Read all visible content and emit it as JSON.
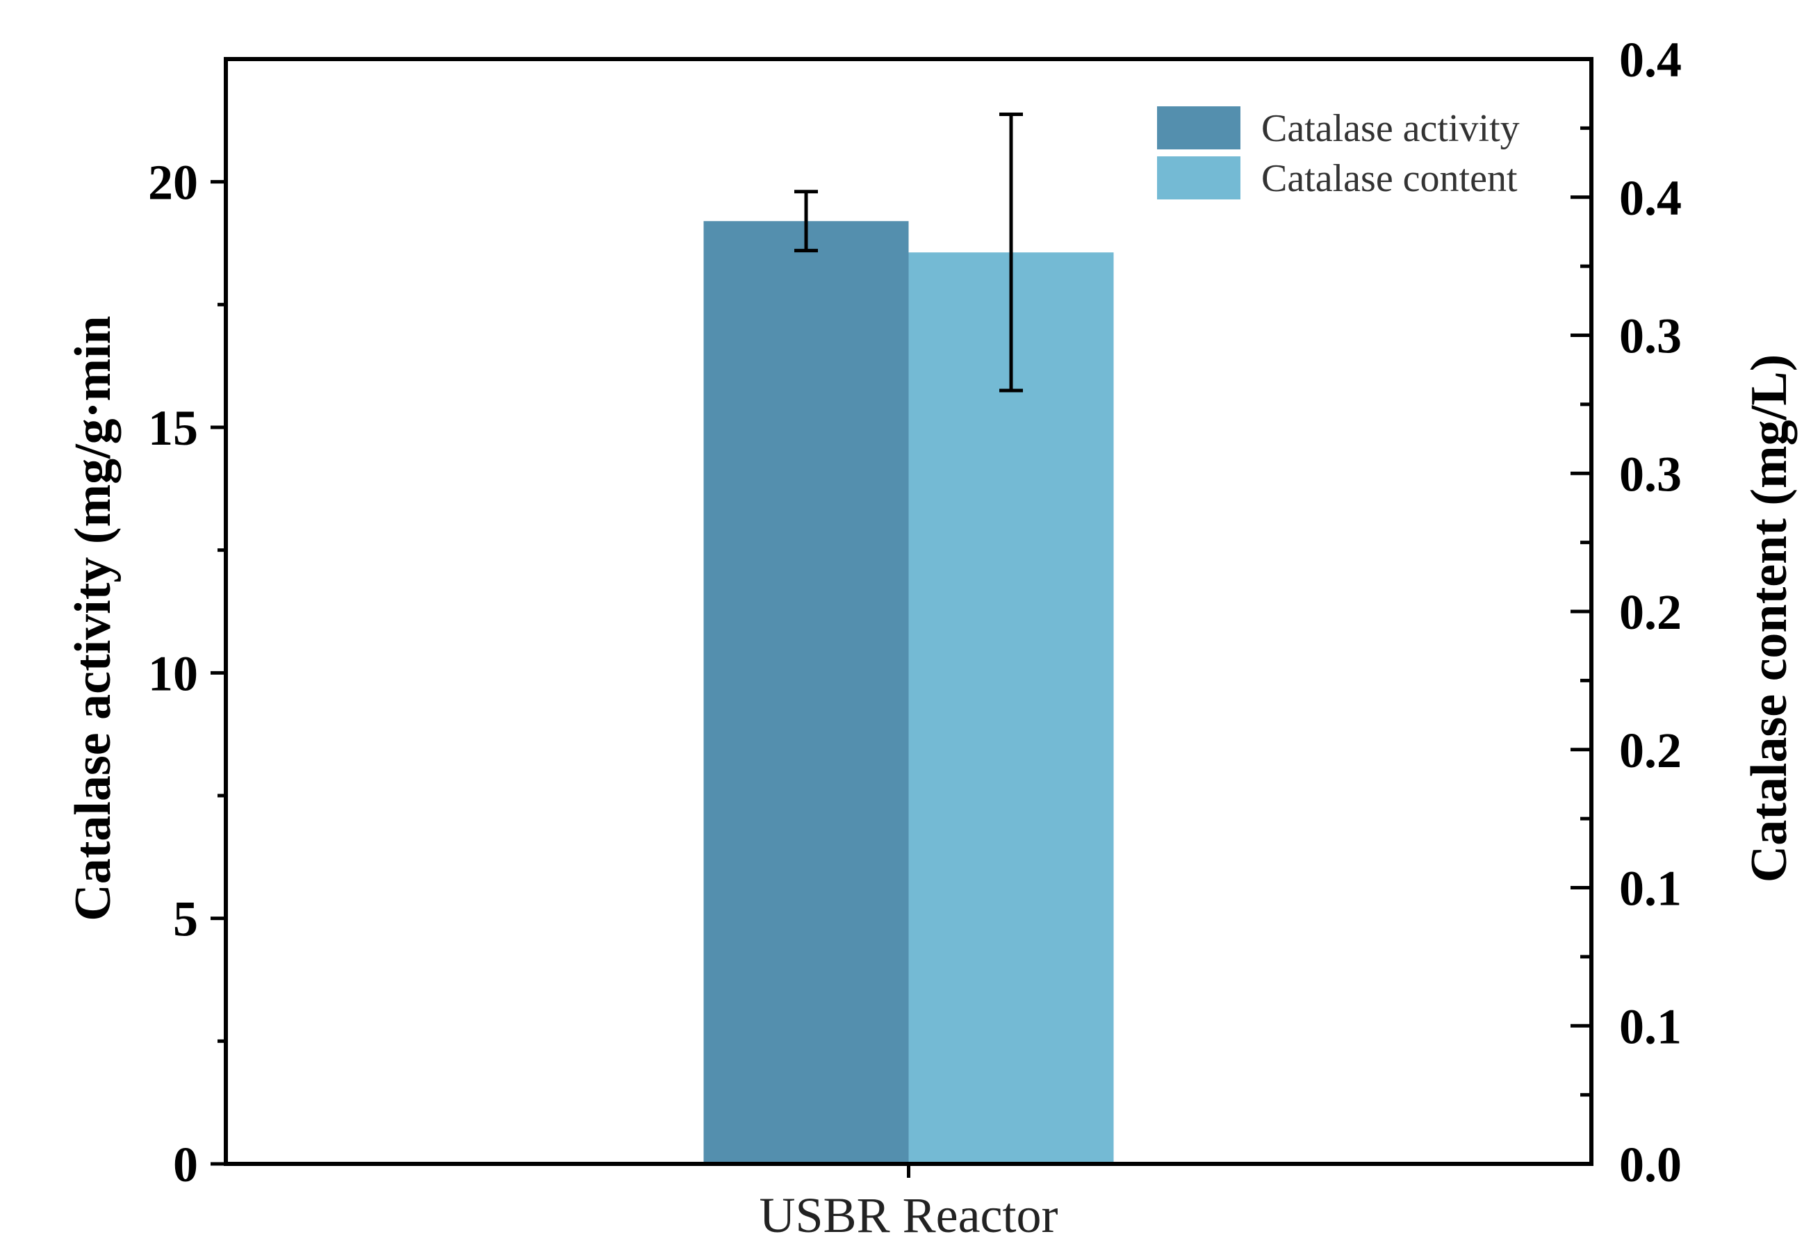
{
  "chart_data": {
    "type": "bar",
    "categories": [
      "USBR Reactor"
    ],
    "series": [
      {
        "name": "Catalase activity",
        "axis": "left",
        "values": [
          19.2
        ],
        "error": [
          0.6
        ],
        "color": "#548FAE"
      },
      {
        "name": "Catalase content",
        "axis": "right",
        "values": [
          0.33
        ],
        "error": [
          0.05
        ],
        "color": "#74BAD4"
      }
    ],
    "y_left": {
      "label": "Catalase activity (mg/g·min",
      "range": [
        0,
        22.5
      ],
      "ticks": [
        0,
        5,
        10,
        15,
        20
      ],
      "tick_labels": [
        "0",
        "5",
        "10",
        "15",
        "20"
      ],
      "minor_ticks": [
        2.5,
        7.5,
        12.5,
        17.5
      ]
    },
    "y_right": {
      "label": "Catalase content (mg/L)",
      "range": [
        0,
        0.4
      ],
      "ticks": [
        0,
        0.05,
        0.1,
        0.15,
        0.2,
        0.25,
        0.3,
        0.35,
        0.4
      ],
      "tick_labels": [
        "0.0",
        "0.1",
        "0.1",
        "0.2",
        "0.2",
        "0.3",
        "0.3",
        "0.4",
        "0.4"
      ],
      "minor_ticks": [
        0.025,
        0.075,
        0.125,
        0.175,
        0.225,
        0.275,
        0.325,
        0.375
      ]
    },
    "legend": {
      "position": "top-right",
      "entries": [
        "Catalase activity",
        "Catalase content"
      ]
    },
    "grid": false
  }
}
